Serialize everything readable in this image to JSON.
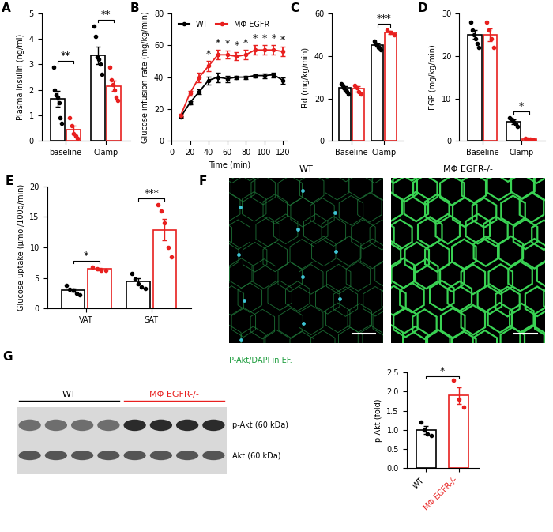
{
  "chart_data": [
    {
      "panel": "A",
      "type": "bar",
      "y_label": "Plasma insulin (ng/ml)",
      "categories": [
        "baseline",
        "Clamp"
      ],
      "series": [
        {
          "color": "#000000",
          "values": [
            1.65,
            3.35
          ],
          "errors": [
            0.3,
            0.35
          ],
          "points": [
            [
              2.9,
              2.0,
              1.8,
              1.7,
              1.5,
              0.9,
              0.7
            ],
            [
              4.5,
              4.1,
              3.3,
              3.2,
              3.0,
              2.6
            ]
          ]
        },
        {
          "color": "#e8201f",
          "values": [
            0.45,
            2.15
          ],
          "errors": [
            0.15,
            0.2
          ],
          "points": [
            [
              0.9,
              0.6,
              0.3,
              0.2,
              0.1
            ],
            [
              2.9,
              2.4,
              2.2,
              2.0,
              1.7,
              1.6
            ]
          ]
        }
      ],
      "significance": [
        {
          "category": "baseline",
          "label": "**"
        },
        {
          "category": "Clamp",
          "label": "**"
        }
      ],
      "ylim": [
        0,
        5
      ],
      "yticks": [
        0,
        1,
        2,
        3,
        4,
        5
      ]
    },
    {
      "panel": "B",
      "type": "line",
      "y_label": "Glucose infusion rate (mg/kg/min)",
      "x_label": "Time (min)",
      "x": [
        10,
        20,
        30,
        40,
        50,
        60,
        70,
        80,
        90,
        100,
        110,
        120
      ],
      "series": [
        {
          "name": "WT",
          "color": "#000000",
          "marker": "o",
          "values": [
            15,
            24,
            31,
            38,
            40,
            39,
            40,
            40,
            41,
            41,
            41.5,
            38
          ],
          "errors": [
            0.5,
            1,
            1.5,
            2.5,
            3,
            2,
            1,
            1,
            1,
            1.5,
            1.5,
            2
          ]
        },
        {
          "name": "MΦ EGFR",
          "color": "#e8201f",
          "marker": "o",
          "values": [
            16,
            30,
            40,
            47,
            54,
            54,
            53,
            54,
            57,
            57,
            57,
            56
          ],
          "errors": [
            1,
            1.5,
            3,
            3,
            3,
            2.5,
            2.5,
            3,
            3,
            3,
            3,
            3
          ]
        }
      ],
      "significance": [
        {
          "x": 40,
          "label": "*"
        },
        {
          "x": 50,
          "label": "*"
        },
        {
          "x": 60,
          "label": "*"
        },
        {
          "x": 70,
          "label": "*"
        },
        {
          "x": 80,
          "label": "*"
        },
        {
          "x": 90,
          "label": "*"
        },
        {
          "x": 100,
          "label": "*"
        },
        {
          "x": 110,
          "label": "*"
        },
        {
          "x": 120,
          "label": "*"
        }
      ],
      "xlim": [
        0,
        125
      ],
      "xticks": [
        0,
        20,
        40,
        60,
        80,
        100,
        120
      ],
      "ylim": [
        0,
        80
      ],
      "yticks": [
        0,
        20,
        40,
        60,
        80
      ],
      "legend": "upper left"
    },
    {
      "panel": "C",
      "type": "bar",
      "y_label": "Rd (mg/kg/min)",
      "categories": [
        "Baseline",
        "Clamp"
      ],
      "series": [
        {
          "color": "#000000",
          "values": [
            25,
            45
          ],
          "errors": [
            0.7,
            0.8
          ],
          "points": [
            [
              27,
              26,
              25,
              24,
              24,
              23,
              22
            ],
            [
              47,
              46,
              45,
              44,
              44,
              43
            ]
          ]
        },
        {
          "color": "#e8201f",
          "values": [
            24.5,
            51
          ],
          "errors": [
            1.2,
            0.8
          ],
          "points": [
            [
              26,
              25,
              23,
              22
            ],
            [
              52,
              51,
              50
            ]
          ]
        }
      ],
      "significance": [
        {
          "category": "Clamp",
          "label": "***"
        }
      ],
      "ylim": [
        0,
        60
      ],
      "yticks": [
        0,
        20,
        40,
        60
      ]
    },
    {
      "panel": "D",
      "type": "bar",
      "y_label": "EGP (mg/kg/min)",
      "categories": [
        "Baseline",
        "Clamp"
      ],
      "series": [
        {
          "color": "#000000",
          "values": [
            25,
            4.5
          ],
          "errors": [
            1,
            0.5
          ],
          "points": [
            [
              28,
              26,
              25,
              24,
              23,
              22
            ],
            [
              5.5,
              5,
              4.5,
              4,
              3.5
            ]
          ]
        },
        {
          "color": "#e8201f",
          "values": [
            25,
            0.5
          ],
          "errors": [
            1.5,
            0.1
          ],
          "points": [
            [
              28,
              26,
              24,
              22
            ],
            [
              0.7,
              0.5,
              0.4,
              0.3
            ]
          ]
        }
      ],
      "significance": [
        {
          "category": "Clamp",
          "label": "*"
        }
      ],
      "ylim": [
        0,
        30
      ],
      "yticks": [
        0,
        10,
        20,
        30
      ]
    },
    {
      "panel": "E",
      "type": "bar",
      "y_label": "Glucose uptake (µmol/100g/min)",
      "categories": [
        "VAT",
        "SAT"
      ],
      "series": [
        {
          "color": "#000000",
          "values": [
            3.0,
            4.4
          ],
          "errors": [
            0.3,
            0.5
          ],
          "points": [
            [
              3.8,
              3.2,
              3.0,
              2.5,
              2.3
            ],
            [
              5.7,
              4.8,
              4.0,
              3.5,
              3.3
            ]
          ]
        },
        {
          "color": "#e8201f",
          "values": [
            6.45,
            12.9
          ],
          "errors": [
            0.15,
            1.8
          ],
          "points": [
            [
              6.8,
              6.5,
              6.3,
              6.2
            ],
            [
              17,
              16,
              14,
              10,
              8.5
            ]
          ]
        }
      ],
      "significance": [
        {
          "category": "VAT",
          "label": "*"
        },
        {
          "category": "SAT",
          "label": "***"
        }
      ],
      "ylim": [
        0,
        20
      ],
      "yticks": [
        0,
        5,
        10,
        15,
        20
      ]
    },
    {
      "panel": "F",
      "type": "image",
      "images": [
        "WT",
        "MΦ EGFR-/-"
      ],
      "caption": "P-Akt/DAPI in EF."
    },
    {
      "panel": "G",
      "type": "blot",
      "groups": [
        {
          "name": "WT",
          "color": "#000000"
        },
        {
          "name": "MΦ EGFR-/-",
          "color": "#e8201f"
        }
      ],
      "bands": [
        "p-Akt (60 kDa)",
        "Akt (60 kDa)"
      ]
    },
    {
      "type": "bar",
      "y_label": "p-Akt (fold)",
      "categories": [
        "WT",
        "MΦ EGFR-/-"
      ],
      "colors": [
        "#000000",
        "#e8201f"
      ],
      "values": [
        1.0,
        1.9
      ],
      "errors": [
        0.1,
        0.22
      ],
      "points": [
        [
          1.2,
          1.0,
          0.9,
          0.85
        ],
        [
          2.3,
          1.8,
          1.6
        ]
      ],
      "significance": [
        {
          "label": "*"
        }
      ],
      "ylim": [
        0,
        2.5
      ],
      "yticks": [
        0.0,
        0.5,
        1.0,
        1.5,
        2.0,
        2.5
      ]
    }
  ]
}
